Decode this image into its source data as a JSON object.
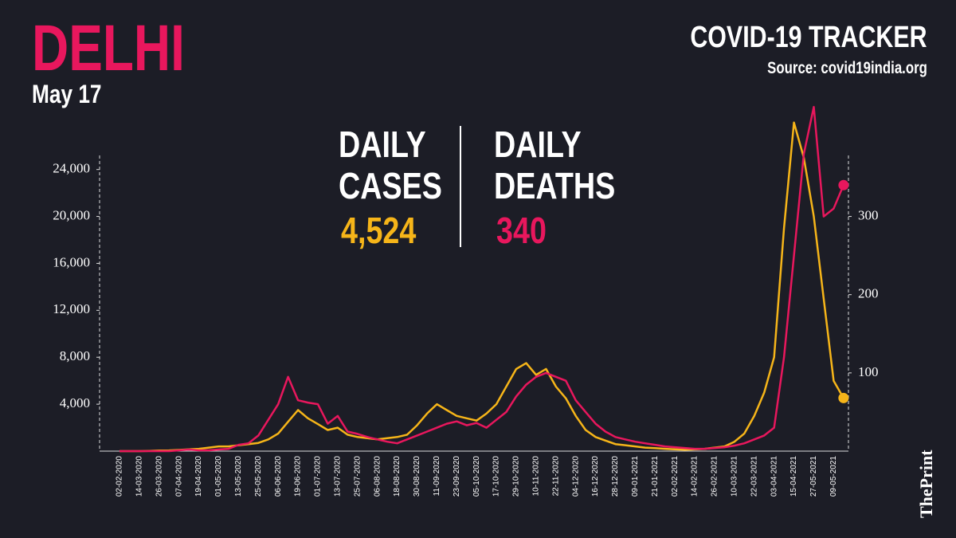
{
  "title": "DELHI",
  "date": "May 17",
  "header": {
    "title": "COVID-19 TRACKER",
    "source": "Source: covid19india.org"
  },
  "brand": "ThePrint",
  "chart_data": {
    "type": "line",
    "x": [
      "02-02-2020",
      null,
      "14-03-2020",
      null,
      "26-03-2020",
      null,
      "07-04-2020",
      null,
      "19-04-2020",
      null,
      "01-05-2020",
      null,
      "13-05-2020",
      null,
      "25-05-2020",
      null,
      "06-06-2020",
      null,
      "19-06-2020",
      null,
      "01-07-2020",
      null,
      "13-07-2020",
      null,
      "25-07-2020",
      null,
      "06-08-2020",
      null,
      "18-08-2020",
      null,
      "30-08-2020",
      null,
      "11-09-2020",
      null,
      "23-09-2020",
      null,
      "05-10-2020",
      null,
      "17-10-2020",
      null,
      "29-10-2020",
      null,
      "10-11-2020",
      null,
      "22-11-2020",
      null,
      "04-12-2020",
      null,
      "16-12-2020",
      null,
      "28-12-2020",
      null,
      "09-01-2021",
      null,
      "21-01-2021",
      null,
      "02-02-2021",
      null,
      "14-02-2021",
      null,
      "26-02-2021",
      null,
      "10-03-2021",
      null,
      "22-03-2021",
      null,
      "03-04-2021",
      null,
      "15-04-2021",
      null,
      "27-05-2021",
      null,
      "09-05-2021",
      null
    ],
    "series": [
      {
        "name": "DAILY CASES",
        "color": "#f6b519",
        "latest": {
          "value": 4524,
          "label": "4,524"
        },
        "values": [
          0,
          0,
          0,
          20,
          50,
          60,
          100,
          150,
          200,
          300,
          400,
          400,
          500,
          600,
          700,
          1000,
          1500,
          2500,
          3500,
          2800,
          2300,
          1800,
          2000,
          1400,
          1200,
          1100,
          1000,
          1100,
          1200,
          1400,
          2200,
          3200,
          4000,
          3500,
          3000,
          2800,
          2600,
          3200,
          4000,
          5500,
          7000,
          7500,
          6500,
          7000,
          5500,
          4500,
          3000,
          1800,
          1200,
          900,
          600,
          500,
          400,
          300,
          250,
          200,
          150,
          120,
          150,
          200,
          300,
          400,
          800,
          1500,
          3000,
          5000,
          8000,
          19000,
          28000,
          25000,
          20000,
          13000,
          6000,
          4524
        ]
      },
      {
        "name": "DAILY DEATHS",
        "color": "#e8175d",
        "axis": "y2",
        "latest": {
          "value": 340,
          "label": "340"
        },
        "values": [
          0,
          0,
          0,
          0,
          0,
          0,
          1,
          2,
          1,
          1,
          2,
          3,
          8,
          10,
          20,
          40,
          60,
          95,
          65,
          62,
          60,
          35,
          45,
          25,
          22,
          18,
          15,
          12,
          10,
          15,
          20,
          25,
          30,
          35,
          38,
          33,
          36,
          30,
          40,
          50,
          70,
          85,
          95,
          100,
          95,
          90,
          65,
          50,
          35,
          25,
          18,
          15,
          12,
          10,
          8,
          6,
          5,
          4,
          3,
          3,
          4,
          5,
          7,
          10,
          15,
          20,
          30,
          120,
          250,
          380,
          440,
          300,
          310,
          340
        ]
      }
    ],
    "ylim": [
      0,
      25200
    ],
    "yticks": [
      {
        "value": 4000,
        "label": "4,000"
      },
      {
        "value": 8000,
        "label": "8,000"
      },
      {
        "value": 12000,
        "label": "12,000"
      },
      {
        "value": 16000,
        "label": "16,000"
      },
      {
        "value": 20000,
        "label": "20,000"
      },
      {
        "value": 24000,
        "label": "24,000"
      }
    ],
    "y2lim": [
      0,
      378
    ],
    "y2ticks": [
      100,
      200,
      300
    ]
  }
}
